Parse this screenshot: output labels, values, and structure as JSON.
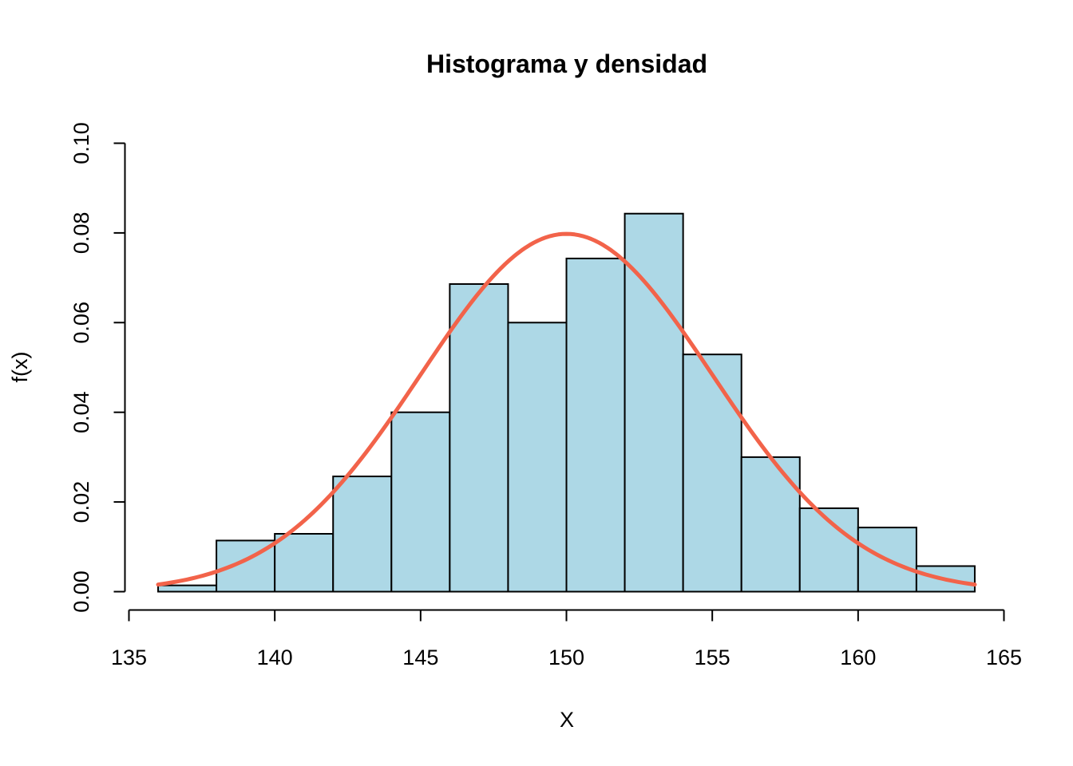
{
  "chart_data": {
    "type": "bar",
    "subtype": "histogram",
    "title": "Histograma y densidad",
    "xlabel": "X",
    "ylabel": "f(x)",
    "xlim": [
      135,
      165
    ],
    "ylim": [
      0,
      0.1
    ],
    "xticks": [
      "135",
      "140",
      "145",
      "150",
      "155",
      "160",
      "165"
    ],
    "yticks": [
      "0.00",
      "0.02",
      "0.04",
      "0.06",
      "0.08",
      "0.10"
    ],
    "bins": [
      {
        "from": 136,
        "to": 138,
        "density": 0.0014
      },
      {
        "from": 138,
        "to": 140,
        "density": 0.0114
      },
      {
        "from": 140,
        "to": 142,
        "density": 0.0129
      },
      {
        "from": 142,
        "to": 144,
        "density": 0.0257
      },
      {
        "from": 144,
        "to": 146,
        "density": 0.04
      },
      {
        "from": 146,
        "to": 148,
        "density": 0.0686
      },
      {
        "from": 148,
        "to": 150,
        "density": 0.06
      },
      {
        "from": 150,
        "to": 152,
        "density": 0.0743
      },
      {
        "from": 152,
        "to": 154,
        "density": 0.0843
      },
      {
        "from": 154,
        "to": 156,
        "density": 0.0529
      },
      {
        "from": 156,
        "to": 158,
        "density": 0.03
      },
      {
        "from": 158,
        "to": 160,
        "density": 0.0186
      },
      {
        "from": 160,
        "to": 162,
        "density": 0.0143
      },
      {
        "from": 162,
        "to": 164,
        "density": 0.0057
      }
    ],
    "density_curve": {
      "distribution": "normal",
      "mean": 150,
      "sd": 5,
      "x_range": [
        136,
        164
      ]
    },
    "grid": false,
    "legend": "none",
    "colors": {
      "bar_fill": "#ADD8E6",
      "bar_border": "#000000",
      "curve": "#F2634A"
    }
  }
}
